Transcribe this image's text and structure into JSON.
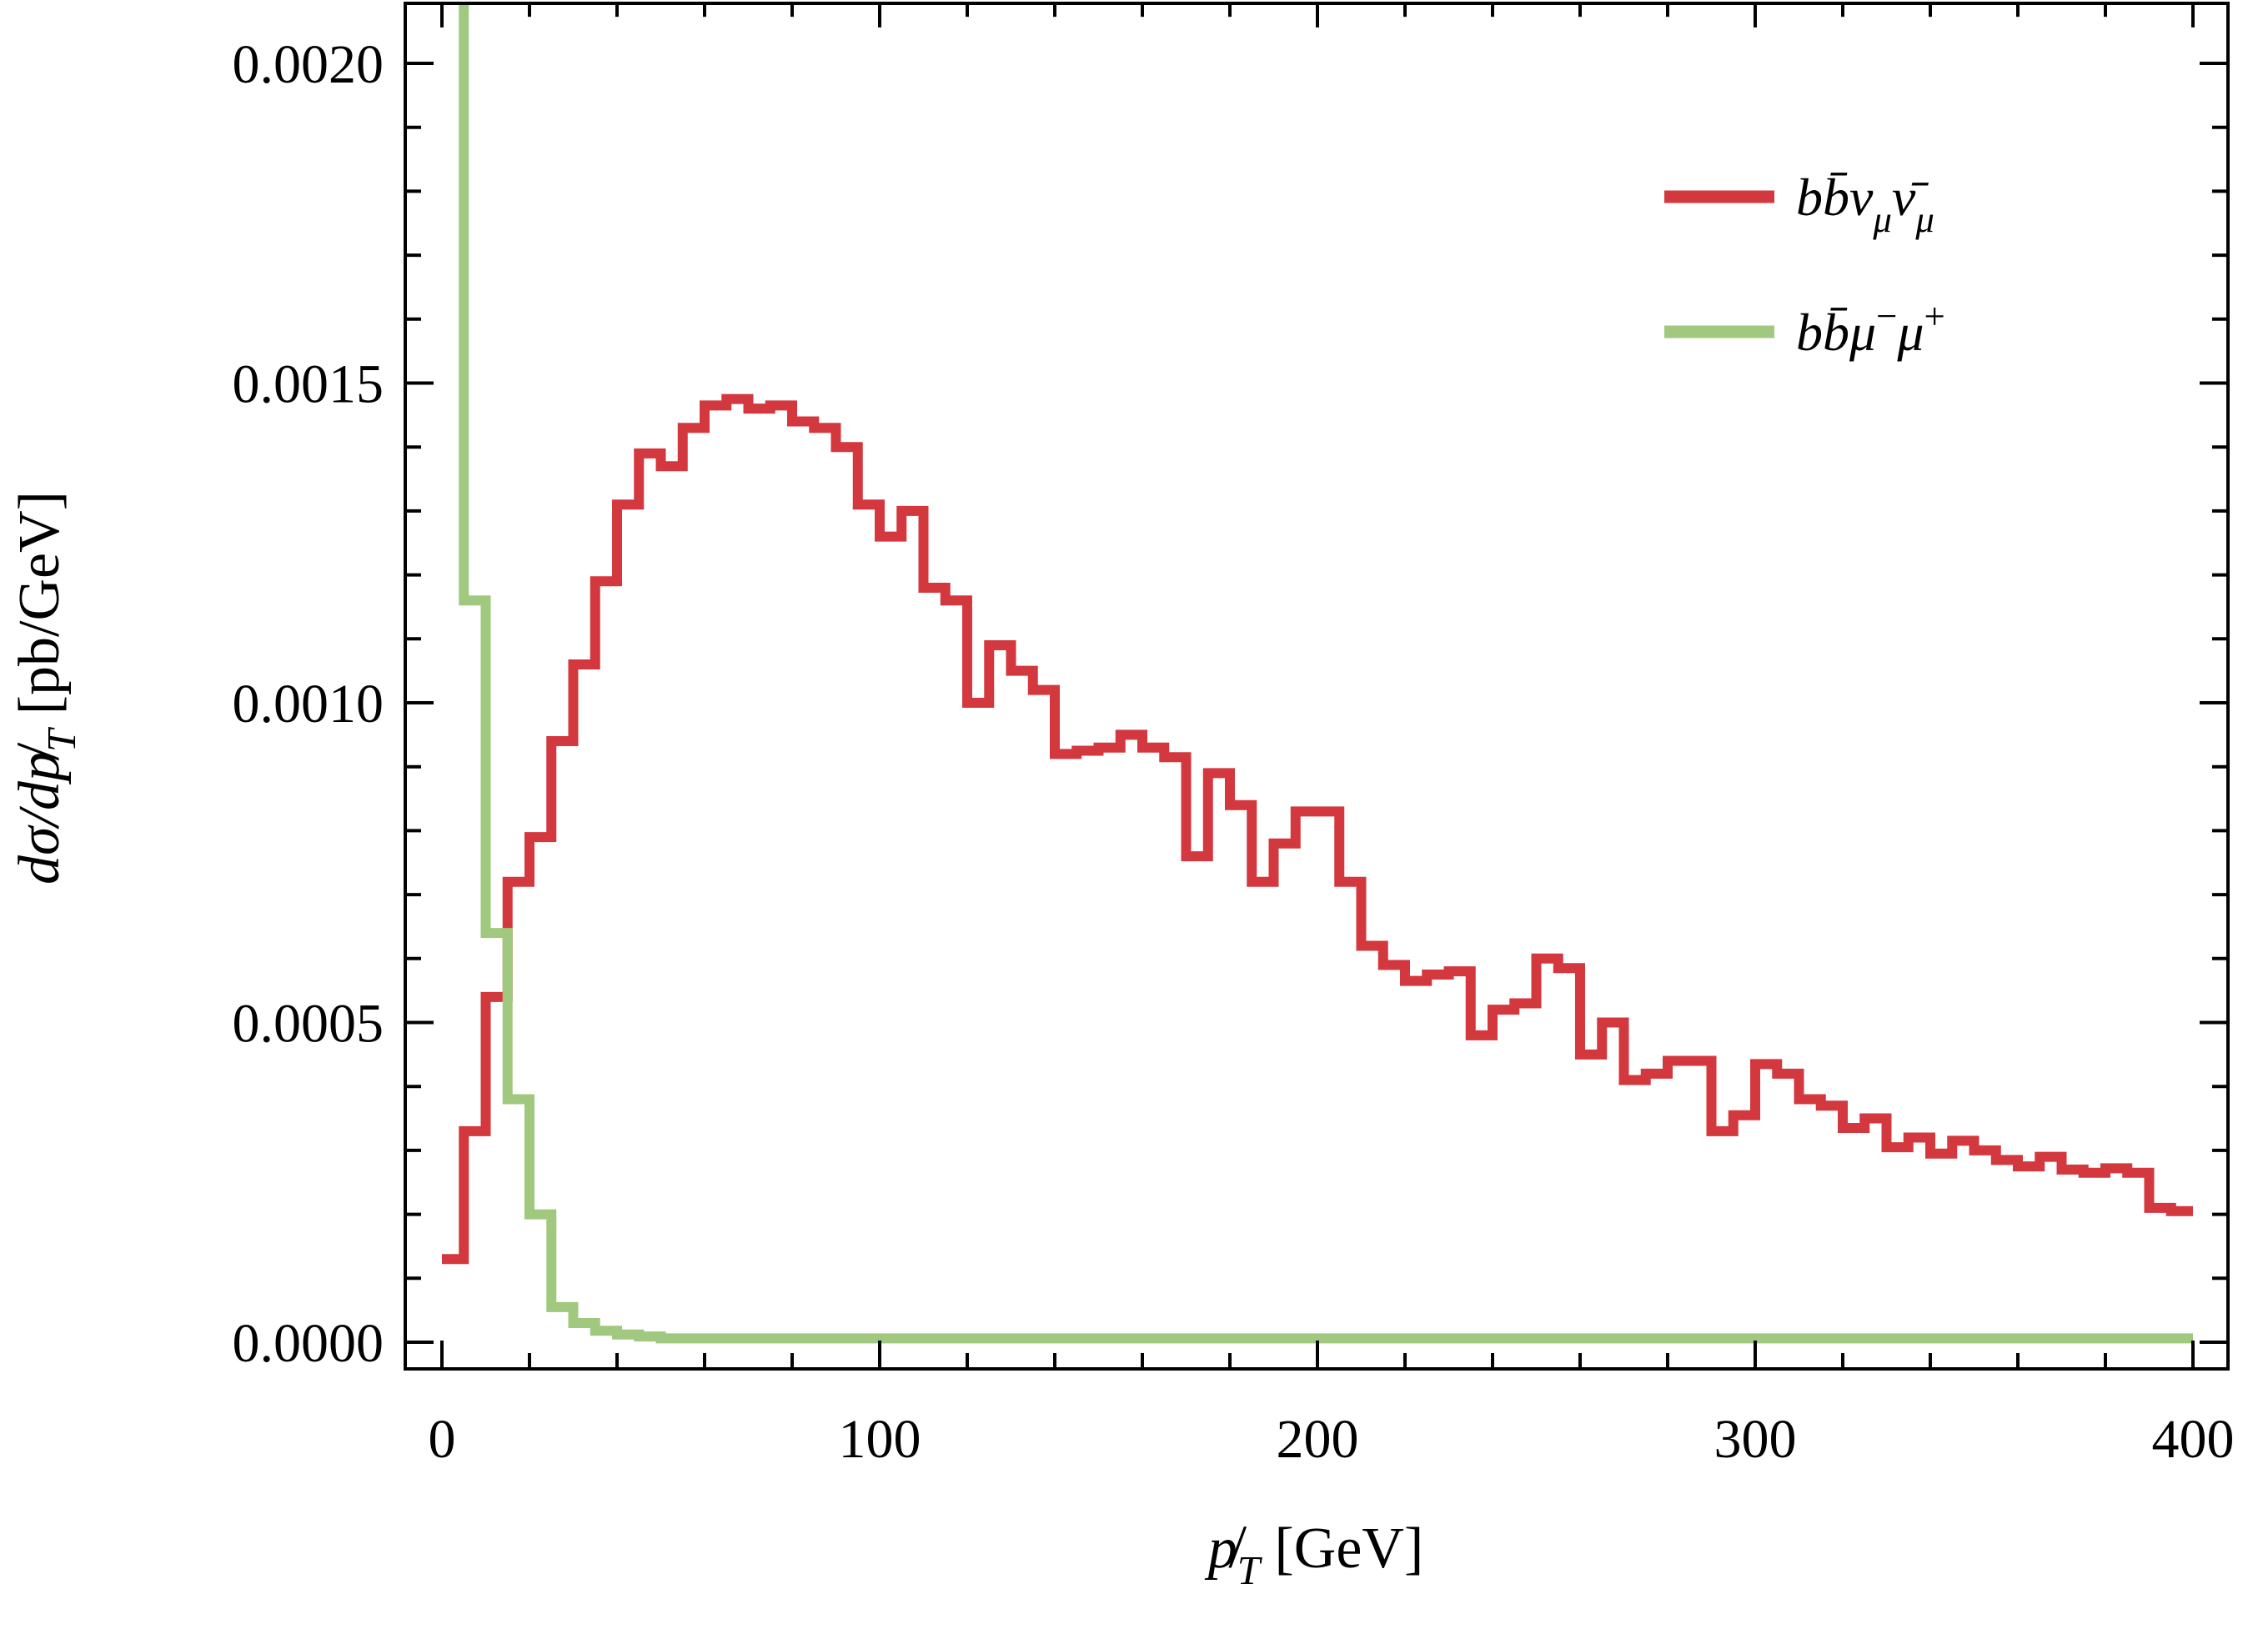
{
  "chart_data": {
    "type": "step-histogram",
    "title": "",
    "xlabel_plain": "pT-slash [GeV]",
    "ylabel_plain": "d sigma / d pT-slash [pb/GeV]",
    "xlabel_runs": [
      {
        "t": "p̸",
        "i": true
      },
      {
        "t": "T",
        "i": true,
        "sub": true
      },
      {
        "t": " [GeV]",
        "i": false
      }
    ],
    "ylabel_runs": [
      {
        "t": "dσ/dp̸",
        "i": true
      },
      {
        "t": "T",
        "i": true,
        "sub": true
      },
      {
        "t": " [pb/GeV]",
        "i": false
      }
    ],
    "xlim": [
      -8.4,
      408
    ],
    "ylim": [
      0,
      0.002095
    ],
    "grid": false,
    "x_ticks": {
      "major_values": [
        0,
        100,
        200,
        300,
        400
      ],
      "major_labels": [
        "0",
        "100",
        "200",
        "300",
        "400"
      ],
      "minor_step": 20
    },
    "y_ticks": {
      "major_values": [
        0.0,
        0.0005,
        0.001,
        0.0015,
        0.002
      ],
      "major_labels": [
        "0.0000",
        "0.0005",
        "0.0010",
        "0.0015",
        "0.0020"
      ],
      "minor_step": 0.0001
    },
    "bin_start": 0,
    "bin_width": 5,
    "bin_end": 400,
    "legend_position": "top-right-inside",
    "series": [
      {
        "name": "bb-numu-numubar",
        "label_plain": "b bbar nu_mu nubar_mu",
        "label_runs": [
          {
            "t": "bb̄ν",
            "i": true
          },
          {
            "t": "μ",
            "i": true,
            "sub": true
          },
          {
            "t": "ν̄",
            "i": true
          },
          {
            "t": "μ",
            "i": true,
            "sub": true
          }
        ],
        "color": "#d3383e",
        "line_width": 12,
        "values": [
          0.00013,
          0.00033,
          0.00054,
          0.00072,
          0.00079,
          0.00094,
          0.00106,
          0.00119,
          0.00131,
          0.00139,
          0.00137,
          0.00143,
          0.001465,
          0.001475,
          0.00146,
          0.001465,
          0.00144,
          0.00143,
          0.0014,
          0.00131,
          0.00126,
          0.0013,
          0.00118,
          0.00116,
          0.001,
          0.00109,
          0.00105,
          0.00102,
          0.00092,
          0.000925,
          0.00093,
          0.00095,
          0.00093,
          0.000915,
          0.00076,
          0.00089,
          0.00084,
          0.00072,
          0.00078,
          0.00083,
          0.00083,
          0.00072,
          0.00062,
          0.00059,
          0.000565,
          0.000575,
          0.00058,
          0.00048,
          0.00052,
          0.00053,
          0.0006,
          0.000585,
          0.00045,
          0.0005,
          0.00041,
          0.00042,
          0.00044,
          0.00044,
          0.00033,
          0.000355,
          0.000435,
          0.00042,
          0.00038,
          0.00037,
          0.000335,
          0.00035,
          0.000305,
          0.00032,
          0.000295,
          0.000315,
          0.0003,
          0.000285,
          0.000275,
          0.00029,
          0.00027,
          0.000265,
          0.000272,
          0.000265,
          0.00021,
          0.000205
        ]
      },
      {
        "name": "bb-mu-minus-mu-plus",
        "label_plain": "b bbar mu- mu+",
        "label_runs": [
          {
            "t": "bb̄μ",
            "i": true
          },
          {
            "t": "−",
            "i": false,
            "sup": true
          },
          {
            "t": "μ",
            "i": true
          },
          {
            "t": "+",
            "i": false,
            "sup": true
          }
        ],
        "color": "#a0c87e",
        "line_width": 12,
        "clipped_first_bin": true,
        "values": [
          0.0025,
          0.00116,
          0.00064,
          0.00038,
          0.0002,
          5.5e-05,
          3e-05,
          1.8e-05,
          1.2e-05,
          9e-06,
          6e-06,
          6e-06,
          6e-06,
          6e-06,
          6e-06,
          6e-06,
          6e-06,
          6e-06,
          6e-06,
          6e-06,
          6e-06,
          6e-06,
          6e-06,
          6e-06,
          6e-06,
          6e-06,
          6e-06,
          6e-06,
          6e-06,
          6e-06,
          6e-06,
          6e-06,
          6e-06,
          6e-06,
          6e-06,
          6e-06,
          6e-06,
          6e-06,
          6e-06,
          6e-06,
          6e-06,
          6e-06,
          6e-06,
          6e-06,
          6e-06,
          6e-06,
          6e-06,
          6e-06,
          6e-06,
          6e-06,
          6e-06,
          6e-06,
          6e-06,
          6e-06,
          6e-06,
          6e-06,
          6e-06,
          6e-06,
          6e-06,
          6e-06,
          6e-06,
          6e-06,
          6e-06,
          6e-06,
          6e-06,
          6e-06,
          6e-06,
          6e-06,
          6e-06,
          6e-06,
          6e-06,
          6e-06,
          6e-06,
          6e-06,
          6e-06,
          6e-06,
          6e-06,
          6e-06,
          6e-06,
          6e-06
        ]
      }
    ],
    "colors": {
      "red_series": "#d3383e",
      "green_series": "#a0c87e",
      "frame": "#000000",
      "background": "#ffffff"
    }
  }
}
